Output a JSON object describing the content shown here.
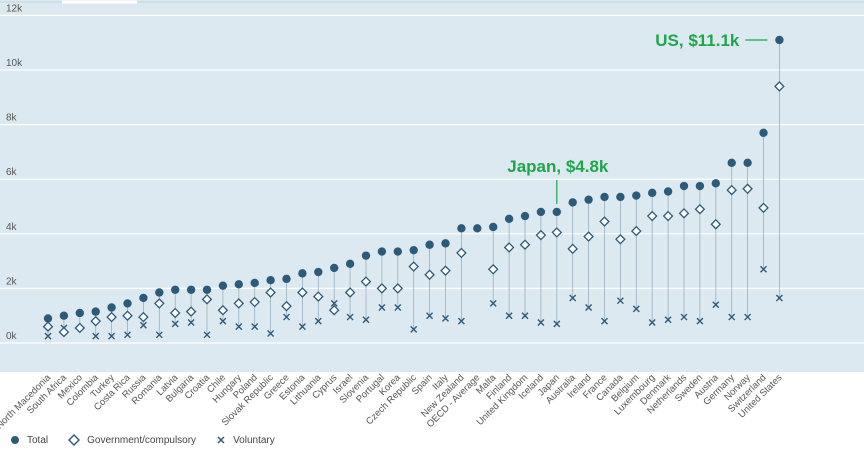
{
  "chart_data": {
    "type": "scatter",
    "categories": [
      "North Macedonia",
      "South Africa",
      "Mexico",
      "Colombia",
      "Turkey",
      "Costa Rica",
      "Russia",
      "Romania",
      "Latvia",
      "Bulgaria",
      "Croatia",
      "Chile",
      "Hungary",
      "Poland",
      "Slovak Republic",
      "Greece",
      "Estonia",
      "Lithuania",
      "Cyprus",
      "Israel",
      "Slovenia",
      "Portugal",
      "Korea",
      "Czech Republic",
      "Spain",
      "Italy",
      "New Zealand",
      "OECD - Average",
      "Malta",
      "Finland",
      "United Kingdom",
      "Iceland",
      "Japan",
      "Australia",
      "Ireland",
      "France",
      "Canada",
      "Belgium",
      "Luxembourg",
      "Denmark",
      "Netherlands",
      "Sweden",
      "Austria",
      "Germany",
      "Norway",
      "Switzerland",
      "United States"
    ],
    "series": [
      {
        "name": "Total",
        "color": "#2e5a7a",
        "marker": "circle",
        "values": [
          0.9,
          1.0,
          1.1,
          1.15,
          1.3,
          1.45,
          1.65,
          1.85,
          1.95,
          1.95,
          1.95,
          2.1,
          2.15,
          2.2,
          2.3,
          2.35,
          2.55,
          2.6,
          2.75,
          2.9,
          3.2,
          3.35,
          3.35,
          3.4,
          3.6,
          3.65,
          4.2,
          4.2,
          4.25,
          4.55,
          4.65,
          4.8,
          4.8,
          5.15,
          5.25,
          5.35,
          5.35,
          5.4,
          5.5,
          5.55,
          5.75,
          5.75,
          5.85,
          6.6,
          6.6,
          7.7,
          11.1
        ]
      },
      {
        "name": "Government/compulsory",
        "color": "#2e5a7a",
        "marker": "diamond",
        "values": [
          0.6,
          0.4,
          0.55,
          0.8,
          0.95,
          1.0,
          0.95,
          1.45,
          1.1,
          1.15,
          1.6,
          1.2,
          1.45,
          1.5,
          1.85,
          1.35,
          1.85,
          1.7,
          1.2,
          1.85,
          2.25,
          2.0,
          2.0,
          2.8,
          2.5,
          2.65,
          3.3,
          null,
          2.7,
          3.5,
          3.6,
          3.95,
          4.05,
          3.45,
          3.9,
          4.45,
          3.8,
          4.1,
          4.65,
          4.65,
          4.75,
          4.9,
          4.35,
          5.6,
          5.65,
          4.95,
          9.4
        ]
      },
      {
        "name": "Voluntary",
        "color": "#2e5a7a",
        "marker": "x",
        "values": [
          0.25,
          0.55,
          null,
          0.25,
          0.25,
          0.3,
          0.65,
          0.3,
          0.7,
          0.75,
          0.3,
          0.8,
          0.6,
          0.6,
          0.35,
          0.95,
          0.6,
          0.8,
          1.45,
          0.95,
          0.85,
          1.3,
          1.3,
          0.5,
          1.0,
          0.9,
          0.8,
          null,
          1.45,
          1.0,
          1.0,
          0.75,
          0.7,
          1.65,
          1.3,
          0.8,
          1.55,
          1.25,
          0.75,
          0.85,
          0.95,
          0.8,
          1.4,
          0.95,
          0.95,
          2.7,
          1.65
        ]
      }
    ],
    "yticks": [
      "0k",
      "2k",
      "4k",
      "6k",
      "8k",
      "10k",
      "12k"
    ],
    "ylim": [
      -0.5,
      12
    ],
    "grid": true,
    "background": "#dde9f1",
    "annotations": [
      {
        "text": "Japan, $4.8k",
        "category": "Japan"
      },
      {
        "text": "US, $11.1k",
        "category": "United States"
      }
    ],
    "legend_position": "bottom-left"
  }
}
